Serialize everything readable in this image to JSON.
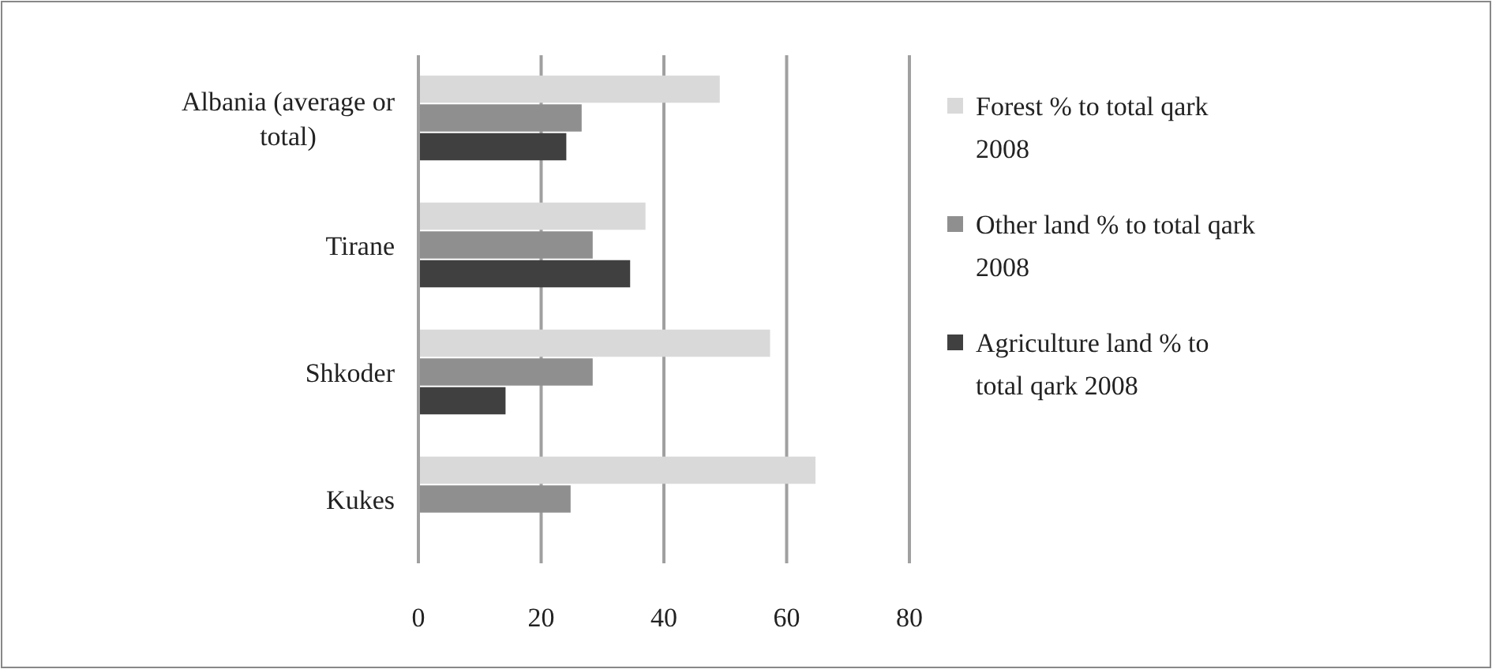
{
  "chart_data": {
    "type": "bar",
    "orientation": "horizontal",
    "categories": [
      "Albania (average or total)",
      "Tirane",
      "Shkoder",
      "Kukes"
    ],
    "series": [
      {
        "name": "Forest % to total qark 2008",
        "color": "#d9d9d9",
        "values": [
          49.1,
          37,
          57.3,
          64.7
        ]
      },
      {
        "name": "Other land % to total qark 2008",
        "color": "#8f8f8f",
        "values": [
          26.6,
          28.4,
          28.4,
          24.8
        ]
      },
      {
        "name": "Agriculture land % to total qark 2008",
        "color": "#404040",
        "values": [
          24.1,
          34.5,
          14.2,
          null
        ]
      }
    ],
    "xlim": [
      0,
      80
    ],
    "xticks": [
      0,
      20,
      40,
      60,
      80
    ],
    "grid": "x",
    "legend": "right"
  }
}
